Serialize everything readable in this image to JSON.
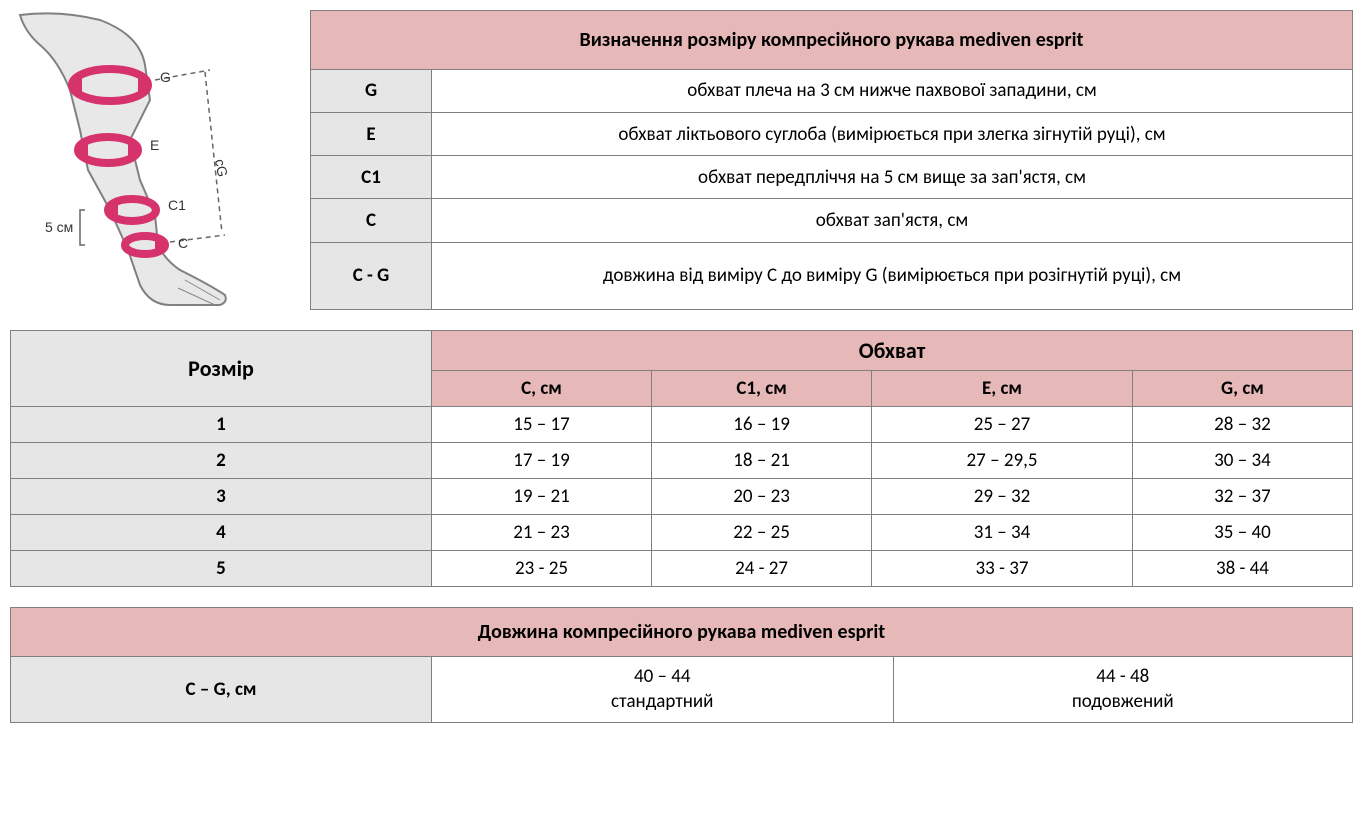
{
  "colors": {
    "header_pink": "#e6b8b8",
    "header_gray": "#e6e6e6",
    "border": "#808080",
    "white": "#ffffff",
    "arm_fill": "#e8e8e8",
    "arm_stroke": "#808080",
    "tape": "#d6336c",
    "dash": "#666666"
  },
  "diagram": {
    "labels": {
      "g": "G",
      "e": "E",
      "cg": "cG",
      "c1": "C1",
      "c": "C",
      "five_cm": "5 см"
    }
  },
  "def_table": {
    "title": "Визначення розміру компресійного рукава mediven esprit",
    "rows": [
      {
        "code": "G",
        "desc": "обхват плеча на 3 см нижче пахвової западини, см"
      },
      {
        "code": "E",
        "desc": "обхват ліктьового суглоба (вимірюється при злегка зігнутій руці), см"
      },
      {
        "code": "C1",
        "desc": "обхват передпліччя на 5 см вище за зап'ястя, см"
      },
      {
        "code": "C",
        "desc": "обхват зап'ястя, см"
      },
      {
        "code": "C - G",
        "desc": "довжина від виміру C до виміру G (вимірюється при розігнутій руці), см",
        "tall": true
      }
    ]
  },
  "size_table": {
    "rozmir_header": "Розмір",
    "obhvat_header": "Обхват",
    "columns": [
      "C, см",
      "C1, см",
      "E, см",
      "G, см"
    ],
    "rows": [
      {
        "size": "1",
        "c": "15 – 17",
        "c1": "16 – 19",
        "e": "25 – 27",
        "g": "28 – 32"
      },
      {
        "size": "2",
        "c": "17 – 19",
        "c1": "18 – 21",
        "e": "27 – 29,5",
        "g": "30 – 34"
      },
      {
        "size": "3",
        "c": "19 – 21",
        "c1": "20 – 23",
        "e": "29 – 32",
        "g": "32 – 37"
      },
      {
        "size": "4",
        "c": "21 – 23",
        "c1": "22 – 25",
        "e": "31 – 34",
        "g": "35 – 40"
      },
      {
        "size": "5",
        "c": "23 - 25",
        "c1": "24 - 27",
        "e": "33 - 37",
        "g": "38 - 44"
      }
    ]
  },
  "length_table": {
    "title": "Довжина компресійного рукава mediven esprit",
    "row_label": "C – G, см",
    "cells": [
      {
        "range": "40 – 44",
        "name": "стандартний"
      },
      {
        "range": "44 - 48",
        "name": "подовжений"
      }
    ]
  }
}
